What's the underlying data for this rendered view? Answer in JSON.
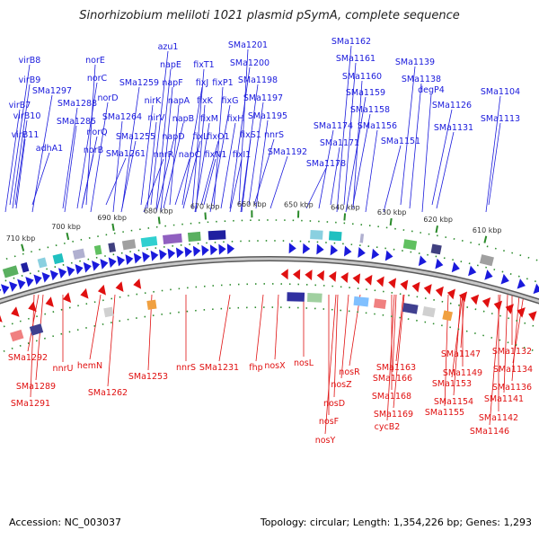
{
  "title": "Sinorhizobium meliloti 1021 plasmid pSymA, complete sequence",
  "footer": {
    "accession": "Accession: NC_003037",
    "summary": "Topology: circular; Length: 1,354,226 bp; Genes: 1,293"
  },
  "colors": {
    "forward": "#1a1adc",
    "reverse": "#e01010",
    "backbone": "#8a8a8a",
    "tick": "#2a8a2a"
  },
  "kbp_ticks": [
    "710 kbp",
    "700 kbp",
    "690 kbp",
    "680 kbp",
    "670 kbp",
    "660 kbp",
    "650 kbp",
    "640 kbp",
    "630 kbp",
    "620 kbp",
    "610 kbp"
  ],
  "forward_genes": [
    "virB8",
    "virB9",
    "virB7",
    "virB10",
    "virB11",
    "SMa1297",
    "adhA1",
    "SMa1288",
    "SMa1285",
    "norE",
    "norC",
    "norD",
    "norQ",
    "norB",
    "SMa1264",
    "SMa1261",
    "SMa1259",
    "SMa1255",
    "nirK",
    "nirV",
    "nnrR",
    "azu1",
    "napE",
    "napF",
    "napA",
    "napB",
    "napD",
    "napC",
    "fixT1",
    "fixK",
    "fixJ",
    "fixL",
    "fixM",
    "fixN1",
    "fixP1",
    "fixG",
    "fixO1",
    "fixH",
    "fixI1",
    "SMa1201",
    "SMa1200",
    "SMa1198",
    "SMa1197",
    "SMa1195",
    "fixS1",
    "nnrS",
    "SMa1192",
    "SMa1162",
    "SMa1161",
    "SMa1160",
    "SMa1159",
    "SMa1158",
    "SMa1174",
    "SMa1156",
    "SMa1171",
    "SMa1178",
    "SMa1151",
    "SMa1139",
    "SMa1138",
    "degP4",
    "SMa1126",
    "SMa1131",
    "SMa1104",
    "SMa1113"
  ],
  "reverse_genes": [
    "SMa1292",
    "SMa1289",
    "SMa1291",
    "nnrU",
    "hemN",
    "SMa1262",
    "SMa1253",
    "nnrS",
    "SMa1231",
    "fhp",
    "nosX",
    "nosL",
    "nosR",
    "nosZ",
    "nosD",
    "nosF",
    "nosY",
    "SMa1163",
    "SMa1166",
    "SMa1168",
    "SMa1169",
    "cycB2",
    "SMa1147",
    "SMa1149",
    "SMa1153",
    "SMa1154",
    "SMa1155",
    "SMa1132",
    "SMa1134",
    "SMa1136",
    "SMa1141",
    "SMa1142",
    "SMa1146"
  ]
}
